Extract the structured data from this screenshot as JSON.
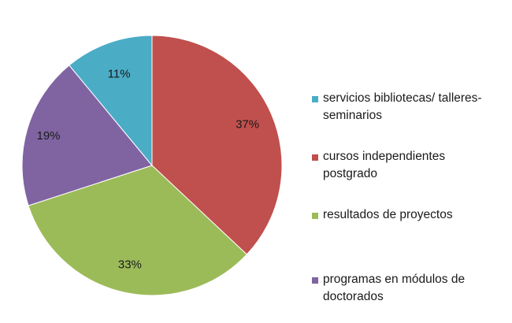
{
  "chart_data": {
    "type": "pie",
    "title": "",
    "start_angle_deg": 0,
    "direction": "clockwise",
    "legend_position": "right",
    "slices": [
      {
        "label": "cursos independientes\npostgrado",
        "value": 37,
        "display": "37%",
        "color": "#c0504d"
      },
      {
        "label": "resultados de proyectos",
        "value": 33,
        "display": "33%",
        "color": "#9bbb59"
      },
      {
        "label": "programas en módulos de\ndoctorados",
        "value": 19,
        "display": "19%",
        "color": "#8064a2"
      },
      {
        "label": "servicios bibliotecas/ talleres-\nseminarios",
        "value": 11,
        "display": "11%",
        "color": "#4bacc6"
      }
    ],
    "legend_order": [
      3,
      0,
      1,
      2
    ]
  }
}
